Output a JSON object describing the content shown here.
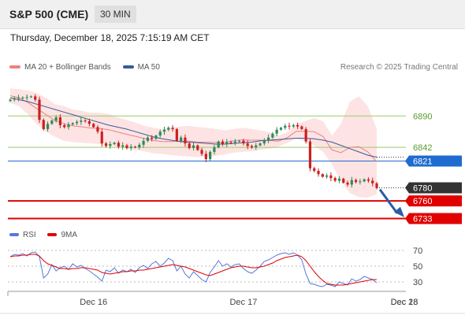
{
  "header": {
    "title": "S&P 500 (CME)",
    "timeframe": "30 MIN"
  },
  "datetime": "Thursday, December 18, 2025 7:15:19 AM CET",
  "legend": {
    "ma20": "MA 20 + Bollinger Bands",
    "ma50": "MA 50",
    "rsi": "RSI",
    "rsi_ma": "9MA"
  },
  "copyright": "Research © 2025 Trading Central",
  "colors": {
    "up": "#2e8b57",
    "down": "#cc1f1f",
    "ma20": "#f08080",
    "ma50": "#3a5a9a",
    "band": "#fde3e3",
    "green_line": "#9acd66",
    "blue_line": "#1f6bd0",
    "red_line": "#e00000",
    "current": "#333333",
    "arrow": "#2b5ca8",
    "rsi": "#5577dd"
  },
  "chart_data": {
    "type": "candlestick",
    "price_range": [
      6718,
      6947
    ],
    "last_price": 6780,
    "levels": [
      {
        "value": 6890,
        "label": "6890",
        "role": "resistance"
      },
      {
        "value": 6842,
        "label": "6842",
        "role": "resistance"
      },
      {
        "value": 6821,
        "label": "6821",
        "role": "pivot"
      },
      {
        "value": 6780,
        "label": "6780",
        "role": "last"
      },
      {
        "value": 6760,
        "label": "6760",
        "role": "support"
      },
      {
        "value": 6733,
        "label": "6733",
        "role": "target"
      }
    ],
    "closes": [
      6915,
      6917,
      6918,
      6918,
      6919,
      6920,
      6915,
      6884,
      6870,
      6878,
      6883,
      6888,
      6876,
      6873,
      6877,
      6879,
      6881,
      6883,
      6882,
      6878,
      6873,
      6866,
      6848,
      6844,
      6847,
      6849,
      6843,
      6845,
      6841,
      6843,
      6842,
      6846,
      6852,
      6857,
      6855,
      6860,
      6866,
      6869,
      6872,
      6870,
      6852,
      6857,
      6848,
      6841,
      6845,
      6838,
      6832,
      6824,
      6835,
      6842,
      6851,
      6847,
      6850,
      6849,
      6851,
      6852,
      6848,
      6844,
      6842,
      6845,
      6848,
      6853,
      6857,
      6863,
      6869,
      6872,
      6875,
      6874,
      6876,
      6874,
      6870,
      6851,
      6810,
      6806,
      6801,
      6797,
      6799,
      6795,
      6791,
      6794,
      6788,
      6785,
      6792,
      6789,
      6790,
      6793,
      6791,
      6787,
      6780
    ],
    "bb_upper": [
      6932,
      6931,
      6929,
      6925,
      6918,
      6908,
      6905,
      6900,
      6898,
      6895,
      6895,
      6893,
      6888,
      6884,
      6880,
      6875,
      6872,
      6870,
      6872,
      6874,
      6875,
      6873,
      6872,
      6870,
      6868,
      6870,
      6872,
      6870,
      6868,
      6865,
      6860,
      6865,
      6878,
      6882,
      6887,
      6882,
      6860,
      6878,
      6912,
      6920,
      6905,
      6870
    ],
    "bb_lower": [
      6910,
      6905,
      6892,
      6877,
      6866,
      6858,
      6852,
      6850,
      6849,
      6848,
      6847,
      6845,
      6843,
      6840,
      6838,
      6836,
      6833,
      6832,
      6830,
      6829,
      6828,
      6827,
      6828,
      6829,
      6831,
      6834,
      6835,
      6836,
      6838,
      6840,
      6843,
      6849,
      6855,
      6851,
      6845,
      6835,
      6816,
      6790,
      6772,
      6766,
      6765,
      6770
    ],
    "ma50": [
      6918,
      6915,
      6912,
      6908,
      6904,
      6900,
      6896,
      6892,
      6888,
      6884,
      6880,
      6876,
      6873,
      6870,
      6866,
      6862,
      6858,
      6855,
      6853,
      6851,
      6850,
      6849,
      6848,
      6847,
      6847,
      6848,
      6849,
      6850,
      6852,
      6853,
      6854,
      6855,
      6856,
      6856,
      6855,
      6853,
      6850,
      6845,
      6840,
      6835,
      6830,
      6827
    ],
    "x_ticks": [
      {
        "label": "Dec 16",
        "index": 20
      },
      {
        "label": "Dec 17",
        "index": 56
      },
      {
        "label": "Dec 18",
        "index": 91
      },
      {
        "label": "Dec 28",
        "index": 105
      }
    ],
    "rsi": {
      "range": [
        20,
        80
      ],
      "ticks": [
        70,
        50,
        30
      ],
      "values": [
        62,
        65,
        64,
        66,
        63,
        67,
        68,
        62,
        35,
        40,
        52,
        44,
        48,
        50,
        46,
        53,
        49,
        51,
        47,
        44,
        40,
        36,
        31,
        45,
        43,
        48,
        41,
        45,
        43,
        46,
        42,
        48,
        51,
        47,
        53,
        56,
        50,
        54,
        60,
        57,
        44,
        50,
        40,
        35,
        43,
        38,
        33,
        30,
        42,
        49,
        57,
        50,
        53,
        49,
        52,
        53,
        47,
        43,
        41,
        45,
        50,
        56,
        58,
        61,
        64,
        66,
        67,
        65,
        67,
        64,
        58,
        40,
        28,
        27,
        25,
        24,
        27,
        26,
        24,
        30,
        28,
        26,
        34,
        31,
        33,
        37,
        35,
        33,
        29
      ],
      "ma9": [
        62,
        63,
        63,
        64,
        64,
        65,
        65,
        63,
        57,
        53,
        51,
        49,
        47,
        47,
        46,
        47,
        47,
        48,
        48,
        47,
        46,
        45,
        42,
        41,
        40,
        41,
        42,
        43,
        43,
        44,
        44,
        45,
        45,
        46,
        47,
        48,
        49,
        50,
        51,
        52,
        51,
        50,
        49,
        47,
        45,
        43,
        41,
        39,
        38,
        40,
        42,
        44,
        46,
        48,
        49,
        50,
        50,
        49,
        48,
        48,
        49,
        50,
        52,
        54,
        57,
        59,
        61,
        62,
        63,
        64,
        62,
        57,
        50,
        43,
        37,
        32,
        28,
        27,
        26,
        26,
        26,
        27,
        28,
        29,
        30,
        31,
        32,
        33,
        33
      ]
    }
  }
}
